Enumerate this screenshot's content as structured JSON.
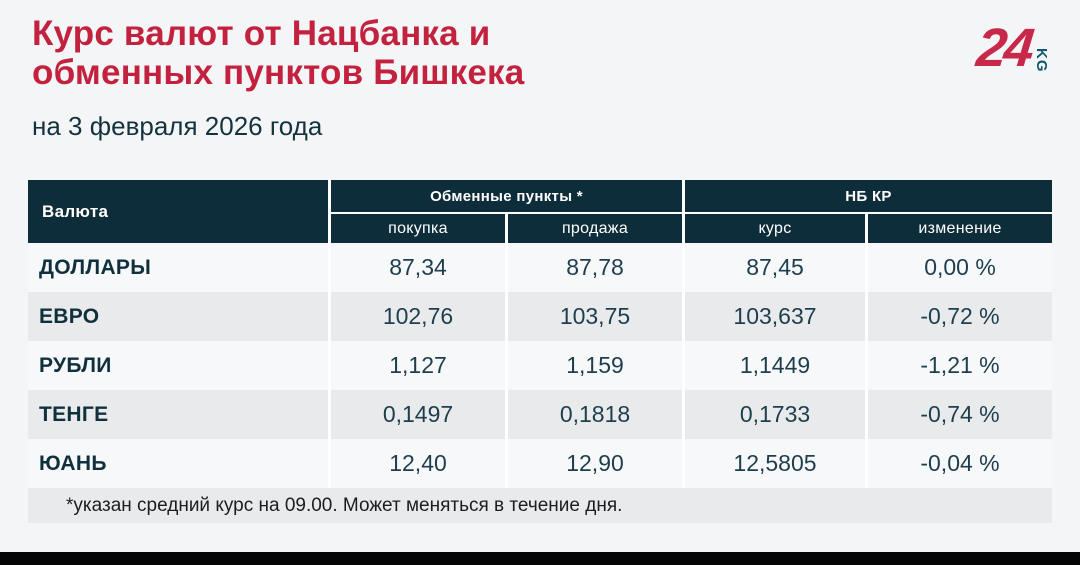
{
  "page": {
    "title_line1": "Курс валют от Нацбанка и",
    "title_line2": "обменных пунктов Бишкека",
    "subtitle": "на 3 февраля 2026 года",
    "footnote": "*указан средний курс на 09.00. Может меняться в течение дня."
  },
  "logo": {
    "number": "24",
    "suffix": "KG"
  },
  "colors": {
    "title_red": "#c3223f",
    "header_bg": "#0e2d3a",
    "text_teal": "#1e3e4e",
    "row_light": "#f7f8f9",
    "row_gray": "#e8eaeb",
    "page_bg": "#f4f5f7"
  },
  "table": {
    "col_currency": "Валюта",
    "group_exchange": "Обменные пункты *",
    "group_nbkr": "НБ КР",
    "sub_buy": "покупка",
    "sub_sell": "продажа",
    "sub_rate": "курс",
    "sub_change": "изменение",
    "rows": [
      {
        "currency": "ДОЛЛАРЫ",
        "buy": "87,34",
        "sell": "87,78",
        "rate": "87,45",
        "change": "0,00 %"
      },
      {
        "currency": "ЕВРО",
        "buy": "102,76",
        "sell": "103,75",
        "rate": "103,637",
        "change": "-0,72 %"
      },
      {
        "currency": "РУБЛИ",
        "buy": "1,127",
        "sell": "1,159",
        "rate": "1,1449",
        "change": "-1,21 %"
      },
      {
        "currency": "ТЕНГЕ",
        "buy": "0,1497",
        "sell": "0,1818",
        "rate": "0,1733",
        "change": "-0,74 %"
      },
      {
        "currency": "ЮАНЬ",
        "buy": "12,40",
        "sell": "12,90",
        "rate": "12,5805",
        "change": "-0,04 %"
      }
    ]
  },
  "chart_data": {
    "type": "table",
    "title": "Курс валют от Нацбанка и обменных пунктов Бишкека",
    "subtitle": "на 3 февраля 2026 года",
    "columns": [
      "Валюта",
      "Обменные пункты * — покупка",
      "Обменные пункты * — продажа",
      "НБ КР — курс",
      "НБ КР — изменение"
    ],
    "rows": [
      [
        "ДОЛЛАРЫ",
        "87,34",
        "87,78",
        "87,45",
        "0,00 %"
      ],
      [
        "ЕВРО",
        "102,76",
        "103,75",
        "103,637",
        "-0,72 %"
      ],
      [
        "РУБЛИ",
        "1,127",
        "1,159",
        "1,1449",
        "-1,21 %"
      ],
      [
        "ТЕНГЕ",
        "0,1497",
        "0,1818",
        "0,1733",
        "-0,74 %"
      ],
      [
        "ЮАНЬ",
        "12,40",
        "12,90",
        "12,5805",
        "-0,04 %"
      ]
    ],
    "footnote": "*указан средний курс на 09.00. Может меняться в течение дня."
  }
}
